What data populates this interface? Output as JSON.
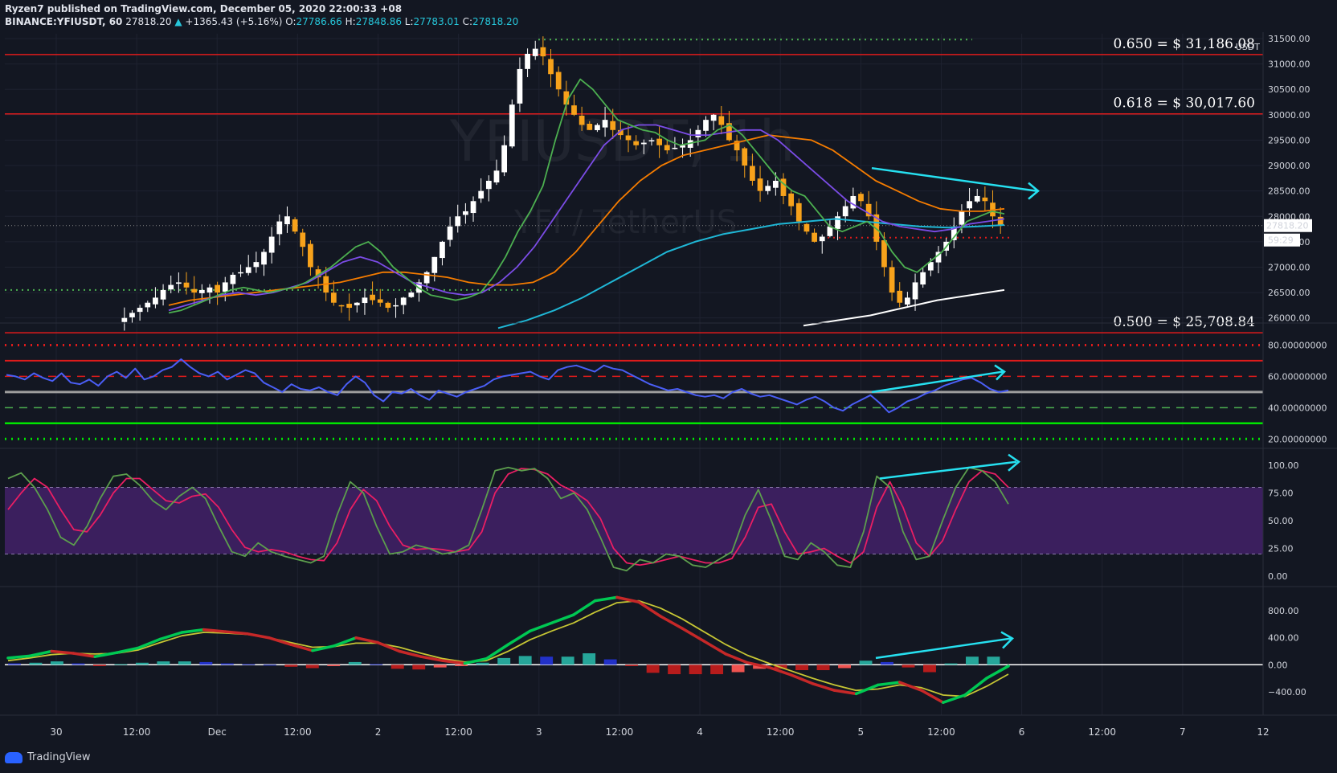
{
  "header": {
    "line1": "Ryzen7 published on TradingView.com, December 05, 2020 22:00:33 +08",
    "symbol": "BINANCE:YFIUSDT, 60",
    "last": "27818.20",
    "change": "+1365.43 (+5.16%)",
    "o_label": "O:",
    "o": "27786.66",
    "h_label": "H:",
    "h": "27848.86",
    "l_label": "L:",
    "l": "27783.01",
    "c_label": "C:",
    "c": "27818.20"
  },
  "watermark": {
    "symbol": "YFIUSDT, 1h",
    "name": "YFI / TetherUS"
  },
  "footer": {
    "brand": "TradingView"
  },
  "colors": {
    "bg": "#131722",
    "grid": "#1e2230",
    "up": "#ffffff",
    "down": "#f7a21b",
    "fib": "#e01b1b",
    "ema_green": "#4caf50",
    "ema_purple": "#7b4ce6",
    "ema_orange": "#f57c00",
    "ema_cyan": "#1fb7d6",
    "ema_white": "#ffffff",
    "rsi": "#4a5ef5",
    "stoch_k": "#5c9e4d",
    "stoch_d": "#e91e63",
    "macd_up": "#00c853",
    "macd_down": "#c62828",
    "signal": "#c6c634",
    "arrow": "#26e0f0",
    "stoch_band": "#3b1f5e"
  },
  "chart_data": [
    {
      "type": "candlestick",
      "title": "YFIUSDT, 1h",
      "currency": "USDT",
      "x_ticks": [
        "30",
        "12:00",
        "Dec",
        "12:00",
        "2",
        "12:00",
        "3",
        "12:00",
        "4",
        "12:00",
        "5",
        "12:00",
        "6",
        "12:00",
        "7",
        "12"
      ],
      "y_ticks": [
        "31500.00",
        "31000.00",
        "30500.00",
        "30000.00",
        "29500.00",
        "29000.00",
        "28500.00",
        "28000.00",
        "27500.00",
        "27000.00",
        "26500.00",
        "26000.00"
      ],
      "ylim": [
        25900,
        31500
      ],
      "last_price": "27818.20",
      "countdown": "59:29",
      "fib_levels": [
        {
          "label": "0.650 = $ 31,186.08",
          "value": 31186.08
        },
        {
          "label": "0.618 = $ 30,017.60",
          "value": 30017.6
        },
        {
          "label": "0.500 = $ 25,708.84",
          "value": 25708.84
        }
      ],
      "close_path": [
        26000,
        26100,
        26200,
        26300,
        26400,
        26550,
        26650,
        26700,
        26600,
        26500,
        26550,
        26600,
        26500,
        26700,
        26850,
        26900,
        27000,
        27100,
        27300,
        27600,
        27900,
        28000,
        27700,
        27400,
        27000,
        26800,
        26500,
        26300,
        26250,
        26200,
        26300,
        26400,
        26350,
        26300,
        26200,
        26250,
        26400,
        26500,
        26700,
        26900,
        27200,
        27500,
        27800,
        28000,
        28100,
        28300,
        28500,
        28700,
        28900,
        29400,
        30200,
        30900,
        31200,
        31300,
        31150,
        30800,
        30500,
        30200,
        30000,
        29800,
        29700,
        29800,
        29900,
        29700,
        29600,
        29500,
        29400,
        29450,
        29500,
        29400,
        29300,
        29350,
        29400,
        29500,
        29700,
        29900,
        30000,
        29800,
        29500,
        29300,
        29000,
        28700,
        28500,
        28600,
        28700,
        28400,
        28200,
        27900,
        27700,
        27500,
        27600,
        27800,
        28000,
        28200,
        28400,
        28300,
        28000,
        27500,
        27000,
        26500,
        26300,
        26400,
        26700,
        26900,
        27100,
        27300,
        27500,
        27800,
        28100,
        28300,
        28400,
        28300,
        28000,
        27818.2
      ],
      "ema_fast": [
        26100,
        26150,
        26250,
        26350,
        26450,
        26550,
        26600,
        26550,
        26500,
        26550,
        26600,
        26700,
        26850,
        27000,
        27200,
        27400,
        27500,
        27300,
        27000,
        26800,
        26600,
        26450,
        26400,
        26350,
        26400,
        26500,
        26800,
        27200,
        27700,
        28100,
        28600,
        29500,
        30300,
        30700,
        30500,
        30200,
        29900,
        29800,
        29700,
        29650,
        29500,
        29400,
        29450,
        29500,
        29700,
        29800,
        29600,
        29300,
        29000,
        28700,
        28500,
        28400,
        28100,
        27800,
        27700,
        27800,
        27900,
        27700,
        27300,
        27000,
        26900,
        27100,
        27300,
        27600,
        27900,
        28000,
        28100,
        28050
      ],
      "ema_purple": [
        26150,
        26250,
        26350,
        26450,
        26500,
        26450,
        26500,
        26600,
        26700,
        26900,
        27100,
        27200,
        27100,
        26900,
        26700,
        26600,
        26500,
        26450,
        26500,
        26700,
        27000,
        27400,
        27900,
        28400,
        28900,
        29400,
        29700,
        29800,
        29800,
        29700,
        29600,
        29600,
        29650,
        29700,
        29700,
        29500,
        29200,
        28900,
        28600,
        28300,
        28100,
        27900,
        27800,
        27750,
        27700,
        27750,
        27850,
        27900,
        27950
      ],
      "ema_orange": [
        26250,
        26350,
        26400,
        26450,
        26500,
        26550,
        26600,
        26650,
        26700,
        26800,
        26900,
        26900,
        26850,
        26800,
        26700,
        26650,
        26650,
        26700,
        26900,
        27300,
        27800,
        28300,
        28700,
        29000,
        29200,
        29300,
        29400,
        29500,
        29600,
        29550,
        29500,
        29300,
        29000,
        28700,
        28500,
        28300,
        28150,
        28100,
        28100,
        28150
      ],
      "ema_cyan": [
        25800,
        25950,
        26150,
        26400,
        26700,
        27000,
        27300,
        27500,
        27650,
        27750,
        27850,
        27900,
        27950,
        27900,
        27850,
        27800,
        27780,
        27800,
        27830
      ],
      "ema_white": [
        25850,
        25950,
        26050,
        26200,
        26350,
        26450,
        26550
      ],
      "trendline": {
        "from": [
          28500
        ],
        "to": [
          28250
        ]
      }
    },
    {
      "type": "line",
      "title": "RSI",
      "y_ticks": [
        "80.00000000",
        "60.00000000",
        "40.00000000",
        "20.00000000"
      ],
      "ylim": [
        15,
        90
      ],
      "levels": [
        80,
        70,
        60,
        50,
        40,
        30,
        20
      ],
      "values": [
        61,
        60,
        58,
        62,
        59,
        57,
        62,
        56,
        55,
        58,
        54,
        60,
        63,
        59,
        65,
        58,
        60,
        64,
        66,
        71,
        66,
        62,
        60,
        63,
        58,
        61,
        64,
        62,
        56,
        53,
        50,
        55,
        52,
        51,
        53,
        50,
        48,
        55,
        60,
        56,
        48,
        44,
        50,
        49,
        52,
        48,
        45,
        51,
        49,
        47,
        50,
        52,
        54,
        58,
        60,
        61,
        62,
        63,
        60,
        58,
        64,
        66,
        67,
        65,
        63,
        67,
        65,
        64,
        61,
        58,
        55,
        53,
        51,
        52,
        50,
        48,
        47,
        48,
        46,
        50,
        52,
        49,
        47,
        48,
        46,
        44,
        42,
        45,
        47,
        44,
        40,
        38,
        42,
        45,
        48,
        43,
        37,
        40,
        44,
        46,
        49,
        51,
        54,
        56,
        58,
        59,
        56,
        52,
        50,
        51
      ]
    },
    {
      "type": "line",
      "title": "Stoch RSI",
      "y_ticks": [
        "100.00",
        "75.00",
        "50.00",
        "25.00",
        "0.00"
      ],
      "ylim": [
        -5,
        105
      ],
      "band": [
        20,
        80
      ],
      "k": [
        88,
        93,
        80,
        60,
        35,
        28,
        45,
        70,
        90,
        92,
        82,
        68,
        60,
        72,
        80,
        70,
        45,
        22,
        18,
        30,
        22,
        18,
        15,
        12,
        18,
        55,
        85,
        75,
        45,
        20,
        22,
        28,
        25,
        20,
        22,
        28,
        60,
        95,
        98,
        95,
        97,
        88,
        70,
        75,
        60,
        35,
        8,
        5,
        15,
        12,
        20,
        18,
        10,
        8,
        15,
        22,
        55,
        78,
        50,
        18,
        15,
        30,
        22,
        10,
        8,
        40,
        90,
        80,
        40,
        15,
        18,
        50,
        80,
        98,
        95,
        85,
        65
      ],
      "d": [
        60,
        75,
        88,
        80,
        60,
        42,
        40,
        55,
        75,
        88,
        88,
        78,
        68,
        66,
        72,
        74,
        62,
        42,
        26,
        22,
        24,
        22,
        18,
        15,
        14,
        30,
        60,
        78,
        68,
        45,
        28,
        24,
        25,
        24,
        22,
        24,
        40,
        75,
        92,
        97,
        96,
        92,
        82,
        76,
        68,
        52,
        25,
        12,
        10,
        12,
        15,
        18,
        15,
        12,
        12,
        16,
        35,
        62,
        65,
        40,
        20,
        22,
        25,
        18,
        12,
        22,
        62,
        85,
        62,
        30,
        18,
        32,
        60,
        85,
        95,
        92,
        80
      ]
    },
    {
      "type": "line",
      "title": "MACD",
      "y_ticks": [
        "800.00",
        "400.00",
        "0.00",
        "−400.00"
      ],
      "ylim": [
        -700,
        1100
      ],
      "macd": [
        100,
        130,
        200,
        170,
        120,
        180,
        250,
        380,
        480,
        520,
        490,
        460,
        400,
        300,
        210,
        280,
        400,
        330,
        200,
        120,
        60,
        20,
        90,
        300,
        500,
        620,
        740,
        950,
        1000,
        930,
        720,
        540,
        350,
        160,
        30,
        -40,
        -150,
        -280,
        -380,
        -430,
        -300,
        -260,
        -380,
        -560,
        -450,
        -200,
        -20
      ],
      "signal": [
        60,
        100,
        150,
        170,
        160,
        170,
        220,
        330,
        430,
        480,
        470,
        450,
        400,
        330,
        260,
        270,
        320,
        320,
        260,
        170,
        90,
        40,
        60,
        200,
        370,
        500,
        620,
        780,
        920,
        950,
        840,
        680,
        490,
        300,
        140,
        20,
        -90,
        -200,
        -300,
        -380,
        -360,
        -300,
        -340,
        -450,
        -470,
        -320,
        -140
      ],
      "histogram": [
        20,
        30,
        50,
        20,
        -20,
        10,
        30,
        50,
        50,
        40,
        20,
        10,
        0,
        -30,
        -50,
        -20,
        40,
        10,
        -60,
        -70,
        -40,
        -20,
        30,
        100,
        130,
        120,
        120,
        170,
        80,
        -20,
        -120,
        -140,
        -140,
        -140,
        -110,
        -60,
        -60,
        -80,
        -80,
        -50,
        60,
        40,
        -40,
        -110,
        20,
        120,
        120
      ]
    }
  ]
}
